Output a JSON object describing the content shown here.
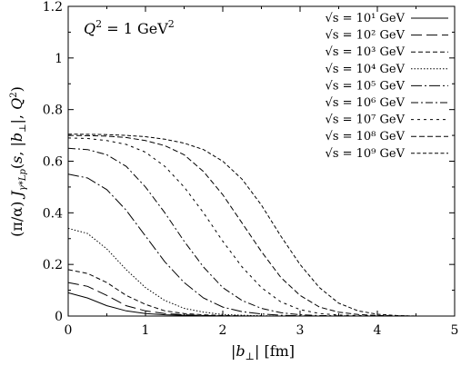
{
  "chart_data": {
    "type": "line",
    "annotation": "Q^2 = 1 GeV^2",
    "xlabel": "|b_⊥| [fm]",
    "ylabel": "(π/α) J_{γ*_L p}(s, |b_⊥|, Q^2)",
    "xlim": [
      0,
      5
    ],
    "ylim": [
      0,
      1.2
    ],
    "x_ticks": [
      "0",
      "1",
      "2",
      "3",
      "4",
      "5"
    ],
    "y_ticks": [
      "0",
      "0.2",
      "0.4",
      "0.6",
      "0.8",
      "1",
      "1.2"
    ],
    "grid": false,
    "legend_position": "top-right",
    "x": [
      0,
      0.25,
      0.5,
      0.75,
      1.0,
      1.25,
      1.5,
      1.75,
      2.0,
      2.25,
      2.5,
      2.75,
      3.0,
      3.25,
      3.5,
      3.75,
      4.0,
      4.25,
      4.5
    ],
    "series": [
      {
        "name": "√s = 10¹ GeV",
        "dash": "none",
        "values": [
          0.09,
          0.07,
          0.04,
          0.02,
          0.01,
          0.005,
          0.003,
          0.001,
          0,
          0,
          0,
          0,
          0,
          0,
          0,
          0,
          0,
          0,
          0
        ]
      },
      {
        "name": "√s = 10² GeV",
        "dash": "12,5",
        "values": [
          0.13,
          0.115,
          0.08,
          0.04,
          0.02,
          0.01,
          0.005,
          0.002,
          0.001,
          0,
          0,
          0,
          0,
          0,
          0,
          0,
          0,
          0,
          0
        ]
      },
      {
        "name": "√s = 10³ GeV",
        "dash": "5,3",
        "values": [
          0.18,
          0.165,
          0.13,
          0.08,
          0.045,
          0.02,
          0.01,
          0.005,
          0.002,
          0.001,
          0,
          0,
          0,
          0,
          0,
          0,
          0,
          0,
          0
        ]
      },
      {
        "name": "√s = 10⁴ GeV",
        "dash": "1.5,2",
        "values": [
          0.34,
          0.32,
          0.26,
          0.18,
          0.11,
          0.06,
          0.03,
          0.015,
          0.006,
          0.003,
          0.001,
          0,
          0,
          0,
          0,
          0,
          0,
          0,
          0
        ]
      },
      {
        "name": "√s = 10⁵ GeV",
        "dash": "12,3,2,3",
        "values": [
          0.55,
          0.535,
          0.49,
          0.41,
          0.31,
          0.21,
          0.13,
          0.07,
          0.035,
          0.017,
          0.008,
          0.003,
          0.001,
          0,
          0,
          0,
          0,
          0,
          0
        ]
      },
      {
        "name": "√s = 10⁶ GeV",
        "dash": "8,3,2,3",
        "values": [
          0.65,
          0.645,
          0.625,
          0.58,
          0.5,
          0.4,
          0.29,
          0.19,
          0.11,
          0.06,
          0.03,
          0.013,
          0.005,
          0.002,
          0.001,
          0,
          0,
          0,
          0
        ]
      },
      {
        "name": "√s = 10⁷ GeV",
        "dash": "3,4",
        "values": [
          0.69,
          0.688,
          0.68,
          0.665,
          0.635,
          0.58,
          0.5,
          0.4,
          0.29,
          0.19,
          0.11,
          0.055,
          0.025,
          0.01,
          0.004,
          0.002,
          0.001,
          0,
          0
        ]
      },
      {
        "name": "√s = 10⁸ GeV",
        "dash": "6,3",
        "values": [
          0.7,
          0.699,
          0.697,
          0.692,
          0.68,
          0.66,
          0.625,
          0.56,
          0.47,
          0.36,
          0.25,
          0.15,
          0.08,
          0.035,
          0.015,
          0.006,
          0.002,
          0.001,
          0
        ]
      },
      {
        "name": "√s = 10⁹ GeV",
        "dash": "4,2.5",
        "values": [
          0.705,
          0.704,
          0.703,
          0.7,
          0.695,
          0.685,
          0.67,
          0.645,
          0.6,
          0.53,
          0.43,
          0.31,
          0.2,
          0.11,
          0.05,
          0.02,
          0.007,
          0.002,
          0
        ]
      }
    ]
  }
}
